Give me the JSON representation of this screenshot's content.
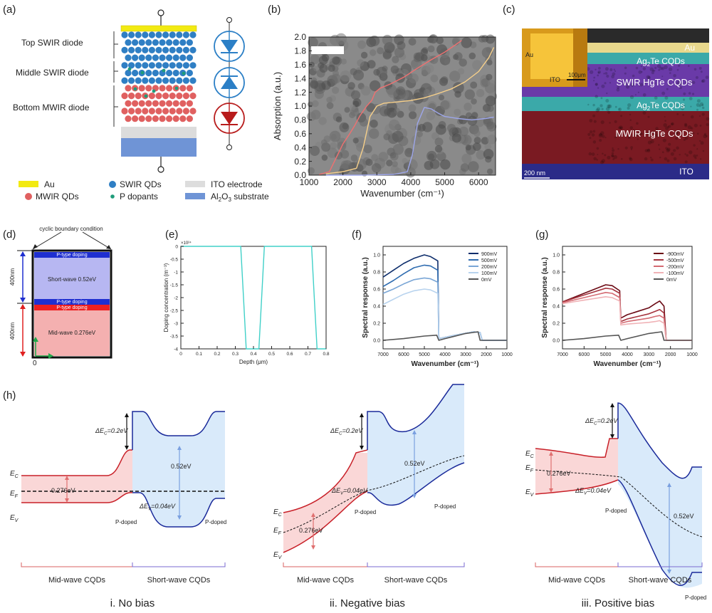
{
  "panel_labels": {
    "a": "(a)",
    "b": "(b)",
    "c": "(c)",
    "d": "(d)",
    "e": "(e)",
    "f": "(f)",
    "g": "(g)",
    "h": "(h)"
  },
  "panel_a": {
    "diode_labels": [
      "Top SWIR diode",
      "Middle SWIR diode",
      "Bottom MWIR diode"
    ],
    "legend": [
      {
        "label": "Au",
        "color": "#f2ea12"
      },
      {
        "label": "SWIR QDs",
        "color": "#2f7fc4"
      },
      {
        "label": "ITO electrode",
        "color": "#dddddd"
      },
      {
        "label": "MWIR QDs",
        "color": "#e06060"
      },
      {
        "label": "P dopants",
        "color": "#1f9c7a"
      },
      {
        "label": "Al2O3 substrate",
        "color": "#6f94d6"
      }
    ],
    "diode_colors": {
      "swir": "#2b7fc6",
      "mwir": "#b81c1c"
    }
  },
  "panel_c": {
    "labels": [
      "Au",
      "Ag2Te CQDs",
      "SWIR HgTe CQDs",
      "Ag2Te CQDs",
      "MWIR HgTe CQDs",
      "ITO"
    ],
    "inset_labels": [
      "Au",
      "ITO",
      "100μm"
    ],
    "scale_bar": "200 nm"
  },
  "panel_d": {
    "title": "cyclic boundary condition",
    "layers": [
      "P-type doping",
      "Short-wave  0.52eV",
      "P-type doping",
      "P-type doping",
      "Mid-wave  0.276eV"
    ],
    "dims": [
      "400nm",
      "400nm"
    ],
    "origin": "0"
  },
  "panel_h": {
    "sublabels": [
      "i. No bias",
      "ii. Negative  bias",
      "iii. Positive  bias"
    ],
    "region_labels": [
      "Mid-wave CQDs",
      "Short-wave CQDs"
    ],
    "ec": "E",
    "ec_sub": "C",
    "ef": "E",
    "ef_sub": "F",
    "ev": "E",
    "ev_sub": "V",
    "delta_ec": "ΔE",
    "delta_ec_val": "=0.2eV",
    "delta_ev": "ΔE",
    "delta_ev_val": "=0.04eV",
    "gap_mw": "0.276eV",
    "gap_sw": "0.52eV",
    "p_doped": "P-doped"
  },
  "chart_data": [
    {
      "id": "b",
      "type": "line",
      "xlabel": "Wavenumber (cm⁻¹)",
      "ylabel": "Absorption (a.u.)",
      "xlim": [
        1000,
        6500
      ],
      "ylim": [
        0,
        2.0
      ],
      "xticks": [
        1000,
        2000,
        3000,
        4000,
        5000,
        6000
      ],
      "yticks": [
        0.0,
        0.2,
        0.4,
        0.6,
        0.8,
        1.0,
        1.2,
        1.4,
        1.6,
        1.8,
        2.0
      ],
      "series": [
        {
          "color": "#f07070",
          "x": [
            1300,
            1600,
            1800,
            2000,
            2200,
            2350,
            2500,
            2700,
            2850,
            2950,
            3100,
            3400,
            3800,
            4200,
            4600,
            5000,
            5300,
            5500
          ],
          "y": [
            0.01,
            0.05,
            0.25,
            0.45,
            0.6,
            0.72,
            0.86,
            1.0,
            1.08,
            1.2,
            1.26,
            1.32,
            1.42,
            1.55,
            1.67,
            1.78,
            1.88,
            1.95
          ]
        },
        {
          "color": "#f7d08a",
          "x": [
            1500,
            2000,
            2400,
            2600,
            2800,
            3000,
            3200,
            3600,
            4000,
            4400,
            4800,
            5200,
            5600,
            6000,
            6300,
            6450
          ],
          "y": [
            0.02,
            0.05,
            0.1,
            0.4,
            0.85,
            1.0,
            1.04,
            1.06,
            1.08,
            1.12,
            1.18,
            1.25,
            1.35,
            1.5,
            1.7,
            1.85
          ]
        },
        {
          "color": "#9da6ea",
          "x": [
            1500,
            2500,
            3500,
            3900,
            4050,
            4200,
            4400,
            4600,
            4800,
            5000,
            5400,
            5800,
            6200,
            6450
          ],
          "y": [
            0.0,
            0.0,
            0.01,
            0.05,
            0.3,
            0.75,
            0.98,
            0.96,
            0.9,
            0.85,
            0.82,
            0.8,
            0.82,
            0.84
          ]
        }
      ]
    },
    {
      "id": "e",
      "type": "line",
      "xlabel": "Depth (μm)",
      "ylabel": "Doping concentration (m⁻³)",
      "exponent": "×10²⁴",
      "xlim": [
        0,
        0.8
      ],
      "ylim": [
        -4,
        0
      ],
      "xticks": [
        0,
        0.1,
        0.2,
        0.3,
        0.4,
        0.5,
        0.6,
        0.7,
        0.8
      ],
      "yticks": [
        0,
        -0.5,
        -1,
        -1.5,
        -2,
        -2.5,
        -3,
        -3.5,
        -4
      ],
      "xtick_labels": [
        "0",
        "0.1",
        "0.2",
        "0.3",
        "0.4",
        "0.5",
        "0.6",
        "0.7",
        "0.8"
      ],
      "ytick_labels": [
        "0",
        "-0.5",
        "-1",
        "-1.5",
        "-2",
        "-2.5",
        "-3",
        "-3.5",
        "-4"
      ],
      "series": [
        {
          "color": "#40d0c8",
          "x": [
            0,
            0.33,
            0.345,
            0.36,
            0.43,
            0.445,
            0.46,
            0.72,
            0.735,
            0.75,
            0.8
          ],
          "y": [
            0,
            0,
            -2,
            -4,
            -4,
            -2,
            0,
            0,
            -2,
            -4,
            -4
          ]
        }
      ]
    },
    {
      "id": "f",
      "type": "line",
      "xlabel": "Wavenumber (cm⁻¹)",
      "ylabel": "Spectral response (a.u.)",
      "xlim": [
        7000,
        1000
      ],
      "ylim": [
        -0.1,
        1.1
      ],
      "xticks": [
        7000,
        6000,
        5000,
        4000,
        3000,
        2000,
        1000
      ],
      "yticks": [
        0.0,
        0.2,
        0.4,
        0.6,
        0.8,
        1.0
      ],
      "legend": [
        "900mV",
        "500mV",
        "200mV",
        "100mV",
        "0mV"
      ],
      "series": [
        {
          "name": "900mV",
          "color": "#0d2d6b",
          "x": [
            7000,
            6500,
            6000,
            5500,
            5000,
            4700,
            4350,
            4300,
            4100,
            3500,
            2600,
            2300,
            2200,
            1000
          ],
          "y": [
            0.74,
            0.82,
            0.9,
            0.96,
            1.0,
            0.98,
            0.93,
            0.02,
            0.03,
            0.06,
            0.1,
            0.09,
            0.0,
            0.0
          ]
        },
        {
          "name": "500mV",
          "color": "#2f6cb0",
          "x": [
            7000,
            6500,
            6000,
            5500,
            5000,
            4700,
            4350,
            4300,
            4100,
            3500,
            2600,
            2300,
            2200,
            1000
          ],
          "y": [
            0.63,
            0.7,
            0.78,
            0.85,
            0.88,
            0.87,
            0.82,
            0.02,
            0.03,
            0.06,
            0.1,
            0.09,
            0.0,
            0.0
          ]
        },
        {
          "name": "200mV",
          "color": "#7aa6d6",
          "x": [
            7000,
            6500,
            6000,
            5500,
            5000,
            4700,
            4350,
            4300,
            4100,
            3500,
            2600,
            2300,
            2200,
            1000
          ],
          "y": [
            0.55,
            0.6,
            0.66,
            0.71,
            0.73,
            0.72,
            0.68,
            0.02,
            0.03,
            0.06,
            0.1,
            0.09,
            0.0,
            0.0
          ]
        },
        {
          "name": "100mV",
          "color": "#b8d3ee",
          "x": [
            7000,
            6500,
            6000,
            5500,
            5000,
            4700,
            4350,
            4300,
            4100,
            3500,
            2600,
            2300,
            2200,
            1000
          ],
          "y": [
            0.42,
            0.48,
            0.54,
            0.58,
            0.6,
            0.59,
            0.55,
            0.02,
            0.03,
            0.06,
            0.1,
            0.09,
            0.0,
            0.0
          ]
        },
        {
          "name": "0mV",
          "color": "#555555",
          "x": [
            7000,
            6000,
            5000,
            4400,
            4300,
            4000,
            3000,
            2400,
            2300,
            1000
          ],
          "y": [
            0.0,
            0.02,
            0.05,
            0.06,
            0.0,
            0.02,
            0.08,
            0.1,
            0.0,
            0.0
          ]
        }
      ]
    },
    {
      "id": "g",
      "type": "line",
      "xlabel": "Wavenumber (cm⁻¹)",
      "ylabel": "Spectral response (a.u.)",
      "xlim": [
        7000,
        1000
      ],
      "ylim": [
        -0.1,
        1.1
      ],
      "xticks": [
        7000,
        6000,
        5000,
        4000,
        3000,
        2000,
        1000
      ],
      "yticks": [
        0.0,
        0.2,
        0.4,
        0.6,
        0.8,
        1.0
      ],
      "legend": [
        "-900mV",
        "-500mV",
        "-200mV",
        "-100mV",
        "0mV"
      ],
      "series": [
        {
          "name": "-900mV",
          "color": "#6b0a14",
          "x": [
            7000,
            6500,
            6000,
            5500,
            5000,
            4700,
            4350,
            4300,
            4000,
            3500,
            3000,
            2700,
            2500,
            2300,
            2200,
            1000
          ],
          "y": [
            0.45,
            0.5,
            0.55,
            0.6,
            0.65,
            0.64,
            0.58,
            0.26,
            0.3,
            0.34,
            0.38,
            0.43,
            0.46,
            0.4,
            0.0,
            0.0
          ]
        },
        {
          "name": "-500mV",
          "color": "#a5343e",
          "x": [
            7000,
            6500,
            6000,
            5500,
            5000,
            4700,
            4350,
            4300,
            4000,
            3500,
            3000,
            2700,
            2500,
            2300,
            2200,
            1000
          ],
          "y": [
            0.45,
            0.49,
            0.53,
            0.57,
            0.61,
            0.6,
            0.55,
            0.22,
            0.25,
            0.28,
            0.31,
            0.34,
            0.36,
            0.32,
            0.0,
            0.0
          ]
        },
        {
          "name": "-200mV",
          "color": "#d46a72",
          "x": [
            7000,
            6500,
            6000,
            5500,
            5000,
            4700,
            4350,
            4300,
            4000,
            3500,
            3000,
            2700,
            2500,
            2300,
            2200,
            1000
          ],
          "y": [
            0.44,
            0.47,
            0.5,
            0.53,
            0.56,
            0.55,
            0.5,
            0.2,
            0.22,
            0.24,
            0.26,
            0.28,
            0.29,
            0.26,
            0.0,
            0.0
          ]
        },
        {
          "name": "-100mV",
          "color": "#f0b2b6",
          "x": [
            7000,
            6500,
            6000,
            5500,
            5000,
            4700,
            4350,
            4300,
            4000,
            3500,
            3000,
            2700,
            2500,
            2300,
            2200,
            1000
          ],
          "y": [
            0.43,
            0.45,
            0.47,
            0.49,
            0.51,
            0.5,
            0.46,
            0.18,
            0.19,
            0.2,
            0.21,
            0.22,
            0.23,
            0.2,
            0.0,
            0.0
          ]
        },
        {
          "name": "0mV",
          "color": "#555555",
          "x": [
            7000,
            6000,
            5000,
            4400,
            4300,
            4000,
            3000,
            2400,
            2300,
            1000
          ],
          "y": [
            0.0,
            0.02,
            0.05,
            0.06,
            0.0,
            0.02,
            0.08,
            0.1,
            0.0,
            0.0
          ]
        }
      ]
    }
  ]
}
